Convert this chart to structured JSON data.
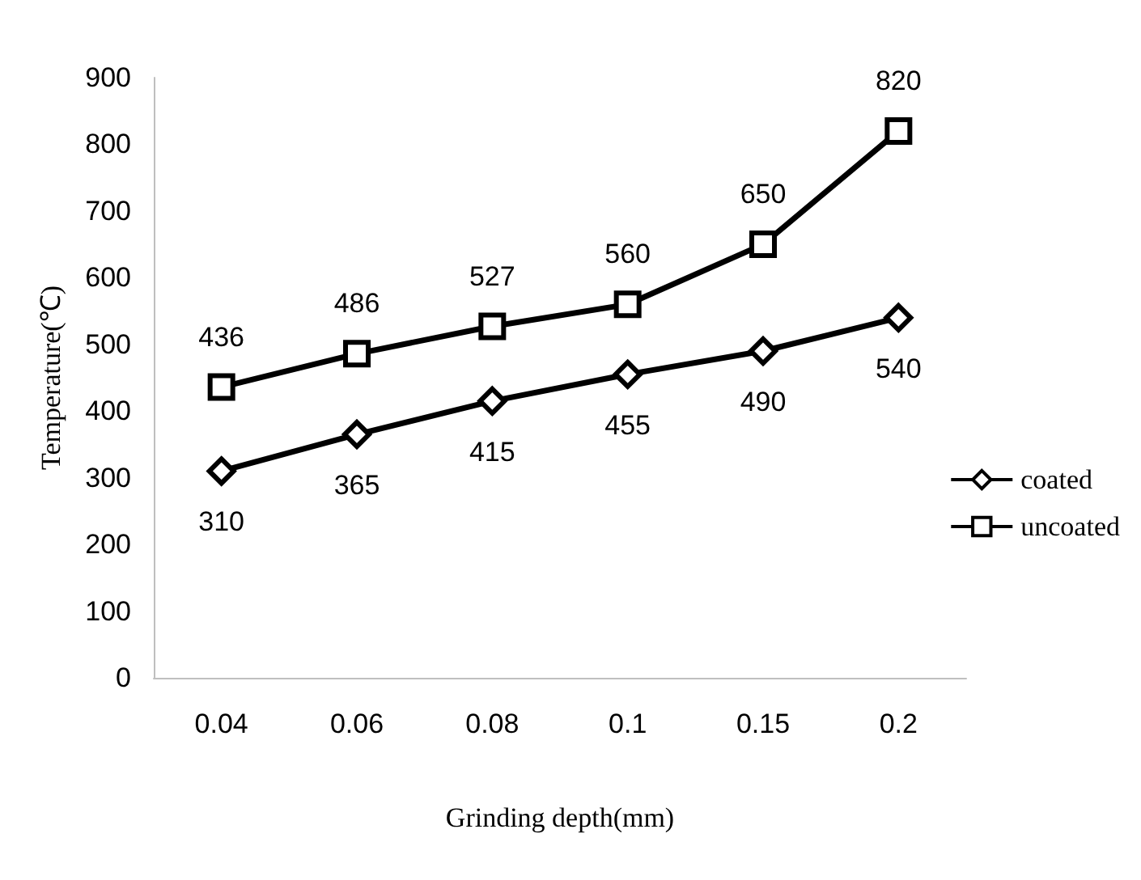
{
  "chart_data": {
    "type": "line",
    "xlabel": "Grinding depth(mm)",
    "ylabel": "Temperature(℃)",
    "categories": [
      "0.04",
      "0.06",
      "0.08",
      "0.1",
      "0.15",
      "0.2"
    ],
    "series": [
      {
        "name": "coated",
        "color": "#000000",
        "marker": "diamond",
        "values": [
          310,
          365,
          415,
          455,
          490,
          540
        ]
      },
      {
        "name": "uncoated",
        "color": "#000000",
        "marker": "square",
        "values": [
          436,
          486,
          527,
          560,
          650,
          820
        ]
      }
    ],
    "ylim": [
      0,
      900
    ],
    "yticks": [
      0,
      100,
      200,
      300,
      400,
      500,
      600,
      700,
      800,
      900
    ],
    "grid": false,
    "legend": "right",
    "data_labels": true,
    "line_style": "solid"
  }
}
